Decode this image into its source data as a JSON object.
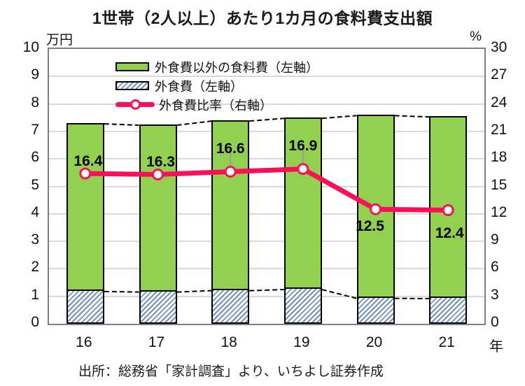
{
  "title": "1世帯（2人以上）あたり1カ月の食料費支出額",
  "source": "出所：総務省「家計調査」より、いちよし証券作成",
  "colors": {
    "bar_green": "#92d050",
    "hatch_blue": "#6e91be",
    "line_pink": "#f81159",
    "grid_gray": "#d9d9d9",
    "plot_border": "#7f7f7f",
    "connector_black": "#000000",
    "leader_gray": "#9b9b9b"
  },
  "chart_data": {
    "type": "bar",
    "subtype": "stacked-bars-with-line-combo",
    "categories": [
      "16",
      "17",
      "18",
      "19",
      "20",
      "21"
    ],
    "x_axis": {
      "unit": "年",
      "labels": [
        "16",
        "17",
        "18",
        "19",
        "20",
        "21"
      ]
    },
    "left_axis": {
      "unit": "万円",
      "min": 0,
      "max": 10,
      "step": 1,
      "ticks": [
        "0",
        "1",
        "2",
        "3",
        "4",
        "5",
        "6",
        "7",
        "8",
        "9",
        "10"
      ]
    },
    "right_axis": {
      "unit": "%",
      "min": 0,
      "max": 30,
      "step": 3,
      "ticks": [
        "0",
        "3",
        "6",
        "9",
        "12",
        "15",
        "18",
        "21",
        "24",
        "27",
        "30"
      ]
    },
    "series": [
      {
        "name": "外食費以外の食料費（左軸）",
        "type": "bar",
        "axis": "left",
        "stack_position": "top",
        "color": "#92d050",
        "values": [
          6.1,
          6.07,
          6.17,
          6.23,
          6.65,
          6.61
        ]
      },
      {
        "name": "外食費（左軸）",
        "type": "bar",
        "axis": "left",
        "stack_position": "bottom",
        "color": "#6e91be",
        "pattern": "diagonal-hatch",
        "values": [
          1.2,
          1.18,
          1.23,
          1.27,
          0.95,
          0.94
        ]
      },
      {
        "name": "外食費比率（右軸）",
        "type": "line",
        "axis": "right",
        "color": "#f81159",
        "values": [
          16.4,
          16.3,
          16.6,
          16.9,
          12.5,
          12.4
        ],
        "labels": [
          "16.4",
          "16.3",
          "16.6",
          "16.9",
          "12.5",
          "12.4"
        ]
      }
    ],
    "stack_totals": [
      7.3,
      7.25,
      7.4,
      7.5,
      7.6,
      7.55
    ],
    "legend": {
      "position": "top-inside",
      "entries": [
        "外食費以外の食料費（左軸）",
        "外食費（左軸）",
        "外食費比率（右軸）"
      ]
    },
    "grid": {
      "horizontal": true,
      "vertical": false,
      "color": "#d9d9d9"
    },
    "connector_lines": {
      "style": "dashed",
      "color": "#000000",
      "connects": [
        "stack-totals-between-bars",
        "hatch-segment-tops-between-bars"
      ]
    }
  }
}
